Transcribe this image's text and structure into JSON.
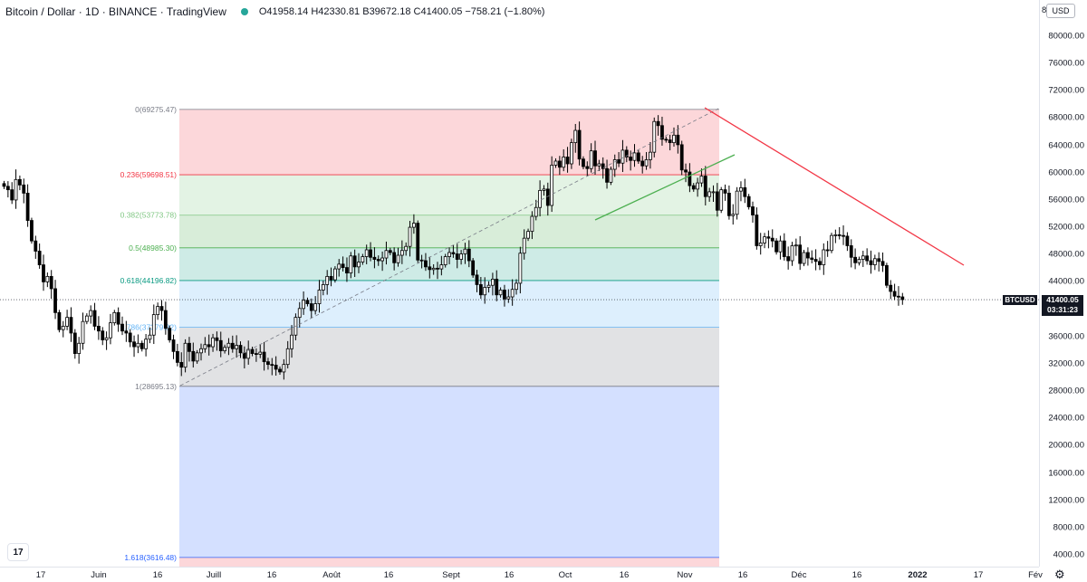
{
  "header": {
    "title": "Bitcoin / Dollar · 1D · BINANCE · TradingView",
    "ohlc": "O41958.14 H42330.81 B39672.18 C41400.05 −758.21 (−1.80%)"
  },
  "price_axis": {
    "currency_button": "USD",
    "top_label": "8",
    "ticks": [
      "80000.00",
      "76000.00",
      "72000.00",
      "68000.00",
      "64000.00",
      "60000.00",
      "56000.00",
      "52000.00",
      "48000.00",
      "44000.00",
      "36000.00",
      "32000.00",
      "28000.00",
      "24000.00",
      "20000.00",
      "16000.00",
      "12000.00",
      "8000.00",
      "4000.00"
    ],
    "tick_values": [
      80000,
      76000,
      72000,
      68000,
      64000,
      60000,
      56000,
      52000,
      48000,
      44000,
      36000,
      32000,
      28000,
      24000,
      20000,
      16000,
      12000,
      8000,
      4000
    ],
    "symbol": "BTCUSD",
    "last_price": "41400.05",
    "countdown": "03:31:23"
  },
  "time_axis": {
    "labels": [
      "17",
      "Juin",
      "16",
      "Juill",
      "16",
      "Août",
      "16",
      "Sept",
      "16",
      "Oct",
      "16",
      "Nov",
      "16",
      "Déc",
      "16",
      "2022",
      "17",
      "Fév"
    ]
  },
  "chart_data": {
    "type": "candlestick",
    "symbol": "BTCUSD",
    "last_price": 41400.05,
    "ylim": [
      4000,
      81000
    ],
    "fibonacci": [
      {
        "level": "0",
        "price": 69275.47,
        "label": "0(69275.47)",
        "color": "#787b86"
      },
      {
        "level": "0.236",
        "price": 59698.51,
        "label": "0.236(59698.51)",
        "color": "#f23645"
      },
      {
        "level": "0.382",
        "price": 53773.78,
        "label": "0.382(53773.78)",
        "color": "#81c784"
      },
      {
        "level": "0.5",
        "price": 48985.3,
        "label": "0.5(48985.30)",
        "color": "#4caf50"
      },
      {
        "level": "0.618",
        "price": 44196.82,
        "label": "0.618(44196.82)",
        "color": "#089981"
      },
      {
        "level": "0.786",
        "price": 37379.32,
        "label": "0.786(37379.32)",
        "color": "#64b5f6"
      },
      {
        "level": "1",
        "price": 28695.13,
        "label": "1(28695.13)",
        "color": "#787b86"
      },
      {
        "level": "1.618",
        "price": 3616.48,
        "label": "1.618(3616.48)",
        "color": "#2962ff"
      }
    ],
    "candles_close": [
      58000,
      57500,
      56000,
      59000,
      58200,
      57000,
      53000,
      50000,
      48500,
      46500,
      44000,
      44800,
      43000,
      39500,
      37000,
      37500,
      38800,
      36500,
      33500,
      35000,
      38200,
      39000,
      39800,
      37500,
      36800,
      35500,
      35800,
      38000,
      39500,
      37800,
      36800,
      36500,
      35200,
      34500,
      35000,
      34200,
      35600,
      36200,
      39200,
      40400,
      39800,
      37200,
      35500,
      33800,
      32200,
      31500,
      35000,
      33800,
      32400,
      33600,
      34200,
      34800,
      34500,
      35800,
      35400,
      33900,
      34400,
      35000,
      34200,
      34700,
      33600,
      32800,
      34100,
      33500,
      33400,
      33700,
      32300,
      31900,
      31800,
      31200,
      30800,
      31900,
      34200,
      36200,
      38800,
      40100,
      41300,
      40800,
      39800,
      40800,
      42800,
      43600,
      44800,
      44300,
      45900,
      46600,
      46100,
      45300,
      47800,
      46200,
      46900,
      47700,
      48700,
      47600,
      47300,
      47100,
      47500,
      48600,
      48300,
      46800,
      47900,
      48600,
      49200,
      52000,
      52600,
      47200,
      47100,
      46200,
      45800,
      46000,
      45900,
      46500,
      47700,
      48300,
      48100,
      47300,
      48100,
      48800,
      47100,
      45000,
      43600,
      42100,
      43200,
      43500,
      44400,
      42100,
      42800,
      41500,
      41800,
      42900,
      43800,
      48200,
      50400,
      51400,
      53600,
      54900,
      57400,
      57600,
      55200,
      61100,
      61700,
      60800,
      62300,
      61300,
      64400,
      66200,
      62000,
      60900,
      60600,
      63200,
      61000,
      61300,
      60600,
      58600,
      60500,
      61900,
      61400,
      63300,
      62300,
      61800,
      62900,
      61700,
      61000,
      61900,
      63000,
      67500,
      66900,
      64900,
      64800,
      64400,
      65500,
      64100,
      60400,
      60100,
      58100,
      57600,
      58500,
      59500,
      56500,
      57200,
      57200,
      54500,
      57500,
      57000,
      53700,
      53900,
      57300,
      57800,
      56500,
      55000,
      53800,
      49300,
      49700,
      50600,
      50400,
      50000,
      48400,
      50000,
      47700,
      47100,
      49300,
      49400,
      46700,
      48300,
      47500,
      47300,
      47000,
      46500,
      48700,
      48600,
      50800,
      50900,
      50800,
      50700,
      49300,
      47600,
      46800,
      47300,
      47800,
      47100,
      46500,
      47400,
      47000,
      46400,
      43500,
      42600,
      41900,
      41800,
      41400
    ]
  }
}
